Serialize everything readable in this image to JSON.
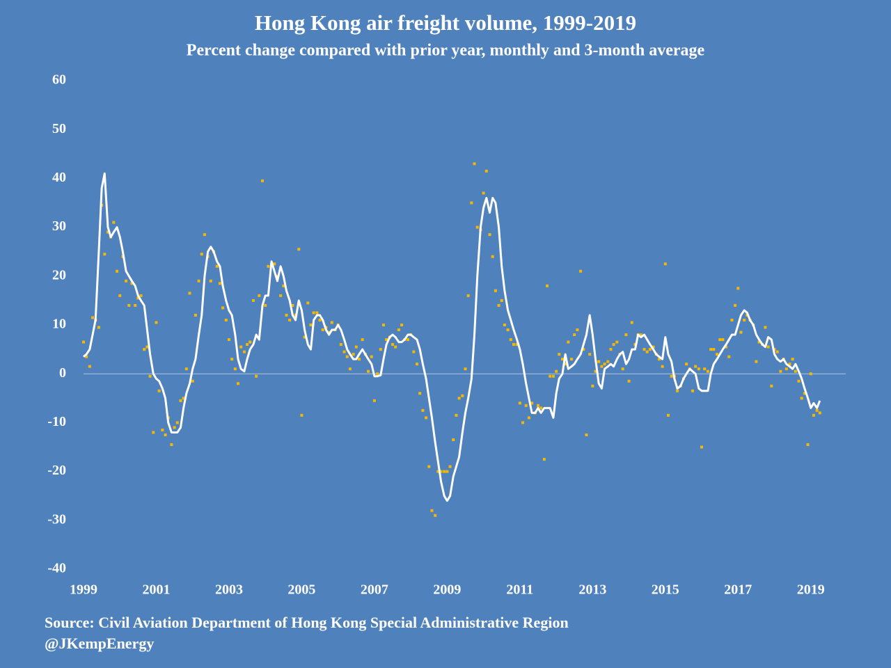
{
  "chart_data": {
    "type": "line",
    "title": "Hong Kong air freight volume, 1999-2019",
    "subtitle": "Percent change compared with prior year, monthly and 3-month average",
    "source": "Source: Civil Aviation Department of Hong Kong Special Administrative Region",
    "credit": "@JKempEnergy",
    "x": [
      1999,
      1999.08,
      1999.17,
      1999.25,
      1999.33,
      1999.42,
      1999.5,
      1999.58,
      1999.67,
      1999.75,
      1999.83,
      1999.92,
      2000,
      2000.08,
      2000.17,
      2000.25,
      2000.33,
      2000.42,
      2000.5,
      2000.58,
      2000.67,
      2000.75,
      2000.83,
      2000.92,
      2001,
      2001.08,
      2001.17,
      2001.25,
      2001.33,
      2001.42,
      2001.5,
      2001.58,
      2001.67,
      2001.75,
      2001.83,
      2001.92,
      2002,
      2002.08,
      2002.17,
      2002.25,
      2002.33,
      2002.42,
      2002.5,
      2002.58,
      2002.67,
      2002.75,
      2002.83,
      2002.92,
      2003,
      2003.08,
      2003.17,
      2003.25,
      2003.33,
      2003.42,
      2003.5,
      2003.58,
      2003.67,
      2003.75,
      2003.83,
      2003.92,
      2004,
      2004.08,
      2004.17,
      2004.25,
      2004.33,
      2004.42,
      2004.5,
      2004.58,
      2004.67,
      2004.75,
      2004.83,
      2004.92,
      2005,
      2005.08,
      2005.17,
      2005.25,
      2005.33,
      2005.42,
      2005.5,
      2005.58,
      2005.67,
      2005.75,
      2005.83,
      2005.92,
      2006,
      2006.08,
      2006.17,
      2006.25,
      2006.33,
      2006.42,
      2006.5,
      2006.58,
      2006.67,
      2006.75,
      2006.83,
      2006.92,
      2007,
      2007.08,
      2007.17,
      2007.25,
      2007.33,
      2007.42,
      2007.5,
      2007.58,
      2007.67,
      2007.75,
      2007.83,
      2007.92,
      2008,
      2008.08,
      2008.17,
      2008.25,
      2008.33,
      2008.42,
      2008.5,
      2008.58,
      2008.67,
      2008.75,
      2008.83,
      2008.92,
      2009,
      2009.08,
      2009.17,
      2009.25,
      2009.33,
      2009.42,
      2009.5,
      2009.58,
      2009.67,
      2009.75,
      2009.83,
      2009.92,
      2010,
      2010.08,
      2010.17,
      2010.25,
      2010.33,
      2010.42,
      2010.5,
      2010.58,
      2010.67,
      2010.75,
      2010.83,
      2010.92,
      2011,
      2011.08,
      2011.17,
      2011.25,
      2011.33,
      2011.42,
      2011.5,
      2011.58,
      2011.67,
      2011.75,
      2011.83,
      2011.92,
      2012,
      2012.08,
      2012.17,
      2012.25,
      2012.33,
      2012.42,
      2012.5,
      2012.58,
      2012.67,
      2012.75,
      2012.83,
      2012.92,
      2013,
      2013.08,
      2013.17,
      2013.25,
      2013.33,
      2013.42,
      2013.5,
      2013.58,
      2013.67,
      2013.75,
      2013.83,
      2013.92,
      2014,
      2014.08,
      2014.17,
      2014.25,
      2014.33,
      2014.42,
      2014.5,
      2014.58,
      2014.67,
      2014.75,
      2014.83,
      2014.92,
      2015,
      2015.08,
      2015.17,
      2015.25,
      2015.33,
      2015.42,
      2015.5,
      2015.58,
      2015.67,
      2015.75,
      2015.83,
      2015.92,
      2016,
      2016.08,
      2016.17,
      2016.25,
      2016.33,
      2016.42,
      2016.5,
      2016.58,
      2016.67,
      2016.75,
      2016.83,
      2016.92,
      2017,
      2017.08,
      2017.17,
      2017.25,
      2017.33,
      2017.42,
      2017.5,
      2017.58,
      2017.67,
      2017.75,
      2017.83,
      2017.92,
      2018,
      2018.08,
      2018.17,
      2018.25,
      2018.33,
      2018.42,
      2018.5,
      2018.58,
      2018.67,
      2018.75,
      2018.83,
      2018.92,
      2019,
      2019.08,
      2019.17,
      2019.25
    ],
    "series": [
      {
        "type": "scatter",
        "color": "#f5b800",
        "values": [
          6.5,
          3.5,
          1.5,
          11.5,
          11,
          9.5,
          34.5,
          24.5,
          29,
          28,
          31,
          21,
          16,
          24,
          19,
          14,
          18.5,
          14,
          15.5,
          16,
          5,
          5.5,
          -0.5,
          -12,
          10.5,
          -3.5,
          -11.5,
          -12.5,
          -9,
          -14.5,
          -11,
          -10,
          -5.5,
          -5,
          1,
          16.5,
          -1.5,
          12,
          19,
          24.5,
          28.5,
          24,
          19,
          25,
          22,
          18.5,
          13.5,
          11,
          7,
          3,
          1,
          -2,
          5.5,
          4.5,
          6,
          6.5,
          15,
          -0.5,
          16,
          39.5,
          14,
          22,
          22.5,
          22.5,
          20,
          16,
          18,
          12,
          11,
          14,
          12,
          25.5,
          -8.5,
          7.5,
          14.5,
          10,
          12.5,
          12.5,
          11,
          9,
          9.5,
          8.5,
          10.5,
          9,
          10,
          6,
          4.5,
          3.5,
          1,
          4,
          5.5,
          3,
          7,
          4,
          0.5,
          3.5,
          -5.5,
          0,
          5,
          10,
          7,
          7.5,
          6,
          5.5,
          9,
          10,
          7,
          7,
          8,
          4.5,
          2,
          -4,
          -7.5,
          -9,
          -19,
          -28,
          -29,
          -20,
          -20,
          -20,
          -20,
          -19,
          -13.5,
          -8.5,
          -5,
          -4.5,
          1,
          16,
          35,
          43,
          30,
          29.5,
          37,
          41.5,
          28.5,
          24,
          17,
          14,
          15,
          10,
          9,
          7,
          6,
          6,
          -6,
          -10,
          -6.5,
          -9,
          -6,
          -8,
          -6.5,
          -7,
          -17.5,
          18,
          -0.5,
          -0.5,
          0.5,
          4,
          3,
          2,
          6.5,
          3,
          8,
          9,
          21,
          5,
          -12.5,
          4,
          -2.5,
          0.5,
          2.5,
          1.5,
          2,
          2.5,
          5,
          6,
          6.5,
          4,
          1,
          8,
          -1.5,
          10.5,
          6,
          8,
          8,
          5,
          4.5,
          5,
          5.5,
          4,
          3,
          1.5,
          22.5,
          -8.5,
          -0.5,
          -0.5,
          -3.5,
          -2.5,
          -1,
          2,
          1,
          -3.5,
          1.5,
          1,
          -15,
          1,
          0.5,
          5,
          5,
          4,
          7,
          7,
          5.5,
          3.5,
          11,
          14,
          17.5,
          8.5,
          11,
          12,
          11,
          10,
          2.5,
          6.5,
          6,
          9.5,
          5.5,
          -2.5,
          5,
          4.5,
          0.5,
          3,
          1,
          2,
          3,
          0.5,
          -1.5,
          -5,
          -4,
          -14.5,
          0,
          -8.5,
          -7.5,
          -8
        ]
      },
      {
        "type": "line",
        "color": "#ffffff",
        "values": [
          3.5,
          4,
          5,
          8,
          11,
          25,
          38,
          41,
          30,
          28,
          29,
          30,
          28,
          25,
          21,
          20,
          19,
          18,
          16,
          15,
          14,
          9,
          4,
          0,
          -1,
          -1.5,
          -3,
          -5,
          -10,
          -12,
          -12,
          -12,
          -11,
          -7,
          -4,
          -2,
          1,
          3,
          8,
          12,
          20,
          25,
          26,
          25,
          23,
          22,
          18,
          15,
          13,
          12,
          8,
          3,
          1,
          0.5,
          3,
          5,
          6,
          8,
          7,
          14,
          16,
          16,
          23,
          21,
          19,
          22,
          20,
          17,
          15,
          12,
          11,
          15,
          13,
          9,
          6,
          5,
          11,
          12,
          12,
          11,
          9,
          8,
          9,
          9,
          10,
          9,
          7,
          5,
          4,
          3,
          3,
          4,
          5,
          4,
          3,
          2,
          -0.5,
          -0.5,
          -0.3,
          3,
          6,
          7.5,
          8,
          7.5,
          6.5,
          6.5,
          7,
          8,
          8,
          7.5,
          7,
          5,
          2,
          -1,
          -5,
          -9,
          -14,
          -18,
          -22,
          -25,
          -26,
          -25,
          -21,
          -19,
          -17,
          -12,
          -8,
          -5,
          -1,
          8,
          20,
          30,
          34,
          36,
          33,
          36,
          35,
          30,
          22,
          17,
          13,
          11,
          9,
          7,
          5,
          2,
          -2,
          -5,
          -8,
          -8,
          -7,
          -8,
          -7,
          -7,
          -7,
          -9,
          -4,
          -1,
          0,
          4,
          1,
          1.5,
          2,
          3,
          4,
          6,
          8,
          12,
          8,
          3,
          -2,
          -3,
          1,
          1.5,
          2,
          1.5,
          3,
          4,
          4.5,
          2,
          3,
          5,
          5,
          8,
          7.5,
          8,
          7,
          6,
          5,
          4,
          3.5,
          3,
          7.5,
          4,
          2.5,
          -1,
          -3,
          -2.5,
          -1,
          0,
          1,
          0.5,
          0,
          -3,
          -3.5,
          -3.5,
          -3.5,
          0,
          2,
          3,
          4,
          5,
          6,
          7,
          8,
          8,
          10,
          12,
          13,
          12.5,
          11,
          10,
          8,
          7,
          6,
          5.5,
          7.5,
          7,
          4,
          3,
          2.5,
          3,
          2,
          1.5,
          1,
          2,
          0.5,
          -1,
          -3,
          -5,
          -7,
          -6,
          -7,
          -5.5
        ]
      }
    ],
    "xlim": [
      1999,
      2020
    ],
    "xticks": [
      1999,
      2001,
      2003,
      2005,
      2007,
      2009,
      2011,
      2013,
      2015,
      2017,
      2019
    ],
    "ylim": [
      -40,
      60
    ],
    "yticks": [
      -40,
      -30,
      -20,
      -10,
      0,
      10,
      20,
      30,
      40,
      50,
      60
    ],
    "grid": false,
    "zero_line": true
  }
}
